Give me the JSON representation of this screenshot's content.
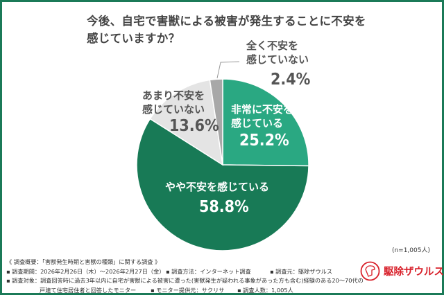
{
  "title_line1": "今後、自宅で害獣による被害が発生することに不安を",
  "title_line2": "感じていますか？",
  "chart_data": {
    "type": "pie",
    "title": "今後、自宅で害獣による被害が発生することに不安を感じていますか？",
    "start": "top",
    "direction": "clockwise",
    "slices": [
      {
        "label_l1": "非常に不安を",
        "label_l2": "感じている",
        "value": 25.2,
        "value_label": "25.2%",
        "color": "#2aa882"
      },
      {
        "label_l1": "やや不安を感じている",
        "label_l2": "",
        "value": 58.8,
        "value_label": "58.8%",
        "color": "#187a56"
      },
      {
        "label_l1": "あまり不安を",
        "label_l2": "感じていない",
        "value": 13.6,
        "value_label": "13.6%",
        "color": "#e4e4e4"
      },
      {
        "label_l1": "全く不安を",
        "label_l2": "感じていない",
        "value": 2.4,
        "value_label": "2.4%",
        "color": "#a8a8a8"
      }
    ],
    "sample": "(n=1,005人)"
  },
  "notes": {
    "overview": "《 調査概要：「害獣発生時期と害獣の種類」に関する調査 》",
    "period": "▪ 調査期間：2026年2月26日（木）～2026年2月27日（金）",
    "method": "▪ 調査方法：インターネット調査",
    "source": "▪ 調査元：駆除ザウルス",
    "target_l1": "▪ 調査対象：調査回答時に過去3年以内に自宅が害獣による被害に遭った(害獣発生が疑われる事象があった方も含む)経験のある20～70代の",
    "target_l2": "戸建て住宅居住者と回答したモニター",
    "provider": "▪ モニター提供元：サクリサ",
    "count": "▪ 調査人数：1,005人"
  },
  "logo": {
    "text": "駆除ザウルス",
    "color": "#d8202a"
  }
}
